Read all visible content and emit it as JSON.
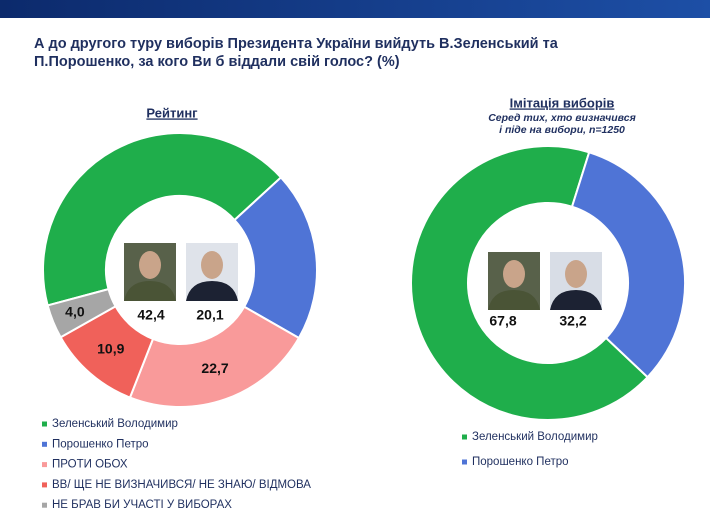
{
  "title": [
    "А до другого туру виборів Президента України вийдуть В.Зеленський та",
    "П.Порошенко, за кого Ви б віддали свій голос? (%)"
  ],
  "chart_data": [
    {
      "type": "donut",
      "title": "Рейтинг",
      "categories": [
        "Зеленський Володимир",
        "Порошенко Петро",
        "ПРОТИ ОБОХ",
        "ВВ/ ЩЕ НЕ ВИЗНАЧИВСЯ/ НЕ ЗНАЮ/ ВІДМОВА",
        "НЕ БРАВ БИ УЧАСТІ У ВИБОРАХ"
      ],
      "values": [
        42.4,
        20.1,
        22.7,
        10.9,
        4.0
      ],
      "value_labels": [
        "42,4",
        "20,1",
        "22,7",
        "10,9",
        "4,0"
      ],
      "colors": [
        "#1fae4b",
        "#4f74d6",
        "#f99a9a",
        "#f0615a",
        "#a6a6a6"
      ]
    },
    {
      "type": "donut",
      "title": "Імітація виборів",
      "subtitle": [
        "Серед тих, хто визначився",
        "і піде на вибори, n=1250"
      ],
      "categories": [
        "Зеленський Володимир",
        "Порошенко Петро"
      ],
      "values": [
        67.8,
        32.2
      ],
      "value_labels": [
        "67,8",
        "32,2"
      ],
      "colors": [
        "#1fae4b",
        "#4f74d6"
      ]
    }
  ]
}
